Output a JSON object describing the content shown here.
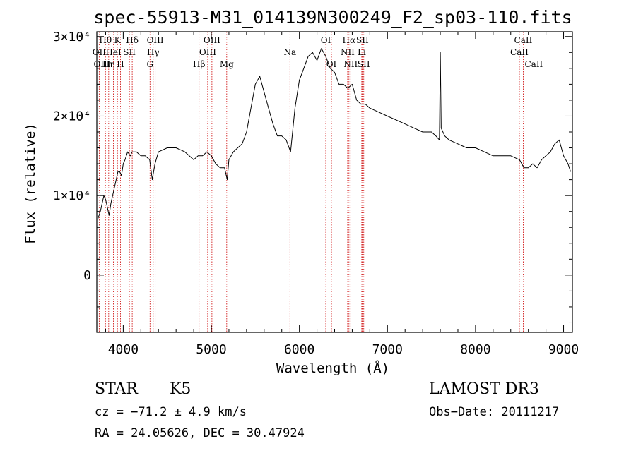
{
  "chart_data": {
    "type": "line",
    "title": "spec-55913-M31_014139N300249_F2_sp03-110.fits",
    "xlabel": "Wavelength (Å)",
    "ylabel": "Flux (relative)",
    "xlim": [
      3700,
      9100
    ],
    "ylim": [
      -7200,
      30600
    ],
    "grid": false,
    "x_ticks": [
      {
        "value": 4000,
        "label": "4000"
      },
      {
        "value": 5000,
        "label": "5000"
      },
      {
        "value": 6000,
        "label": "6000"
      },
      {
        "value": 7000,
        "label": "7000"
      },
      {
        "value": 8000,
        "label": "8000"
      },
      {
        "value": 9000,
        "label": "9000"
      }
    ],
    "y_ticks": [
      {
        "value": 0,
        "label": "0"
      },
      {
        "value": 10000,
        "label": "1×10⁴"
      },
      {
        "value": 20000,
        "label": "2×10⁴"
      },
      {
        "value": 30000,
        "label": "3×10⁴"
      }
    ],
    "series": [
      {
        "color": "#000000",
        "x": [
          3710,
          3740,
          3760,
          3780,
          3800,
          3820,
          3840,
          3860,
          3880,
          3900,
          3920,
          3940,
          3960,
          3980,
          4000,
          4020,
          4050,
          4080,
          4100,
          4150,
          4200,
          4250,
          4300,
          4330,
          4360,
          4400,
          4500,
          4600,
          4700,
          4800,
          4850,
          4900,
          4950,
          5000,
          5050,
          5100,
          5150,
          5180,
          5200,
          5250,
          5300,
          5350,
          5400,
          5450,
          5500,
          5550,
          5600,
          5650,
          5700,
          5750,
          5800,
          5850,
          5900,
          5950,
          6000,
          6050,
          6100,
          6150,
          6200,
          6250,
          6300,
          6350,
          6400,
          6450,
          6500,
          6550,
          6600,
          6650,
          6700,
          6750,
          6800,
          6900,
          7000,
          7100,
          7200,
          7300,
          7400,
          7500,
          7550,
          7590,
          7600,
          7610,
          7650,
          7700,
          7800,
          7900,
          8000,
          8100,
          8200,
          8300,
          8400,
          8500,
          8550,
          8600,
          8650,
          8700,
          8750,
          8800,
          8850,
          8900,
          8950,
          9000,
          9050,
          9080
        ],
        "y": [
          7000,
          8000,
          9000,
          10000,
          9500,
          8500,
          7500,
          9000,
          10000,
          11000,
          12000,
          13000,
          13000,
          12500,
          14000,
          14500,
          15500,
          15000,
          15500,
          15500,
          15000,
          15000,
          14500,
          12000,
          14000,
          15500,
          16000,
          16000,
          15500,
          14500,
          15000,
          15000,
          15500,
          15000,
          14000,
          13500,
          13500,
          12000,
          14500,
          15500,
          16000,
          16500,
          18000,
          21000,
          24000,
          25000,
          23000,
          21000,
          19000,
          17500,
          17500,
          17000,
          15500,
          21000,
          24500,
          26000,
          27500,
          28000,
          27000,
          28500,
          27500,
          26000,
          25500,
          24000,
          24000,
          23500,
          24000,
          22000,
          21500,
          21500,
          21000,
          20500,
          20000,
          19500,
          19000,
          18500,
          18000,
          18000,
          17500,
          17000,
          28000,
          18500,
          17500,
          17000,
          16500,
          16000,
          16000,
          15500,
          15000,
          15000,
          15000,
          14500,
          13500,
          13500,
          14000,
          13500,
          14500,
          15000,
          15500,
          16500,
          17000,
          15000,
          14000,
          13000
        ]
      }
    ],
    "line_markers": [
      {
        "label": "Hθ",
        "wavelength": 3798,
        "row": 1
      },
      {
        "label": "OII",
        "wavelength": 3727,
        "row": 2
      },
      {
        "label": "OIII",
        "wavelength": 3760,
        "row": 3
      },
      {
        "label": "K",
        "wavelength": 3934,
        "row": 1
      },
      {
        "label": "HeI",
        "wavelength": 3889,
        "row": 2
      },
      {
        "label": "Hη",
        "wavelength": 3835,
        "row": 3
      },
      {
        "label": "Hδ",
        "wavelength": 4102,
        "row": 1
      },
      {
        "label": "SII",
        "wavelength": 4070,
        "row": 2
      },
      {
        "label": "H",
        "wavelength": 3969,
        "row": 3
      },
      {
        "label": "OIII",
        "wavelength": 4363,
        "row": 1
      },
      {
        "label": "Hγ",
        "wavelength": 4340,
        "row": 2
      },
      {
        "label": "G",
        "wavelength": 4304,
        "row": 3
      },
      {
        "label": "OIII",
        "wavelength": 5007,
        "row": 1
      },
      {
        "label": "OIII",
        "wavelength": 4959,
        "row": 2
      },
      {
        "label": "Hβ",
        "wavelength": 4861,
        "row": 3
      },
      {
        "label": "Mg",
        "wavelength": 5175,
        "row": 3
      },
      {
        "label": "Na",
        "wavelength": 5893,
        "row": 2
      },
      {
        "label": "OI",
        "wavelength": 6300,
        "row": 1
      },
      {
        "label": "OI",
        "wavelength": 6364,
        "row": 3
      },
      {
        "label": "Hα",
        "wavelength": 6563,
        "row": 1
      },
      {
        "label": "NII",
        "wavelength": 6548,
        "row": 2
      },
      {
        "label": "NII",
        "wavelength": 6583,
        "row": 3
      },
      {
        "label": "SII",
        "wavelength": 6716,
        "row": 1
      },
      {
        "label": "Li",
        "wavelength": 6708,
        "row": 2
      },
      {
        "label": "SII",
        "wavelength": 6731,
        "row": 3
      },
      {
        "label": "CaII",
        "wavelength": 8542,
        "row": 1
      },
      {
        "label": "CaII",
        "wavelength": 8498,
        "row": 2
      },
      {
        "label": "CaII",
        "wavelength": 8662,
        "row": 3
      }
    ]
  },
  "info": {
    "class": "STAR",
    "subclass": "K5",
    "survey": "LAMOST DR3",
    "cz": "cz = −71.2 ± 4.9 km/s",
    "obs_date": "Obs−Date: 20111217",
    "coords": "RA =  24.05626, DEC =  30.47924"
  }
}
